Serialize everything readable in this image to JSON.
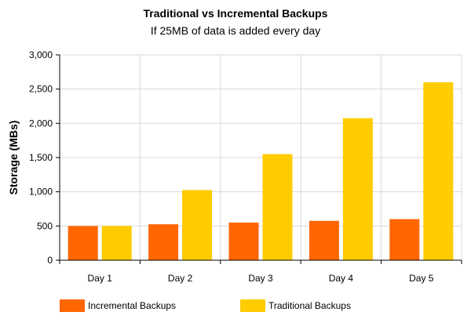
{
  "chart_data": {
    "type": "bar",
    "title": "Traditional vs Incremental Backups",
    "subtitle": "If 25MB of data is added every day",
    "xlabel": "",
    "ylabel": "Storage (MBs)",
    "categories": [
      "Day 1",
      "Day 2",
      "Day 3",
      "Day 4",
      "Day 5"
    ],
    "ylim": [
      0,
      3000
    ],
    "yticks": [
      "0",
      "500",
      "1,000",
      "1,500",
      "2,000",
      "2,500",
      "3,000"
    ],
    "ytick_values": [
      0,
      500,
      1000,
      1500,
      2000,
      2500,
      3000
    ],
    "grid": true,
    "legend_position": "bottom",
    "series": [
      {
        "name": "Incremental Backups",
        "color": "#ff6600",
        "values": [
          500,
          525,
          550,
          575,
          600
        ]
      },
      {
        "name": "Traditional Backups",
        "color": "#ffcc00",
        "values": [
          500,
          1025,
          1550,
          2075,
          2600
        ]
      }
    ]
  }
}
